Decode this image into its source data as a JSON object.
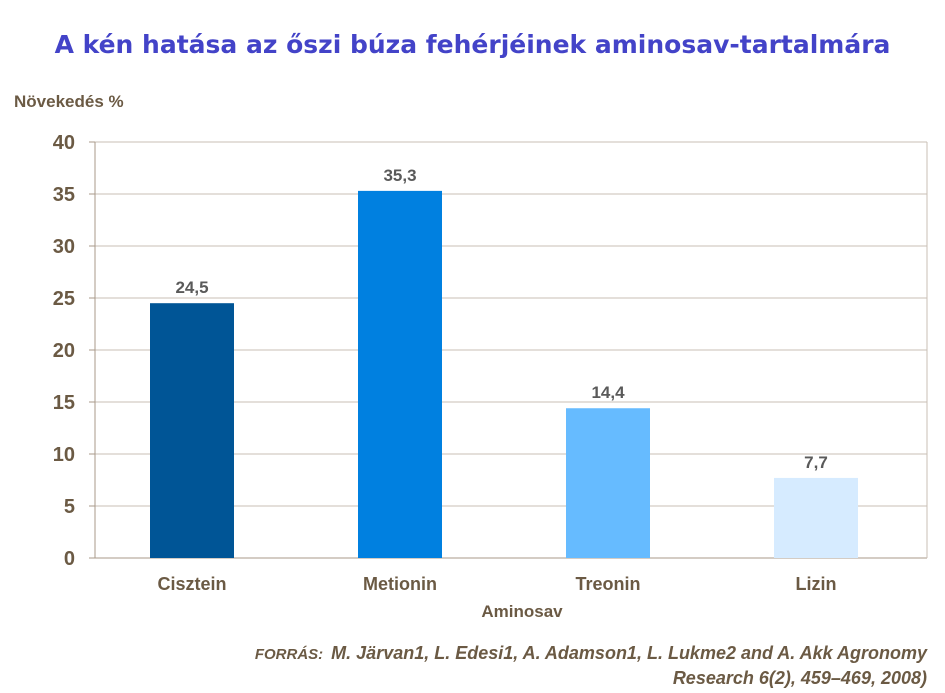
{
  "chart_data": {
    "type": "bar",
    "title": "A kén hatása az őszi búza fehérjéinek aminosav-tartalmára",
    "ylabel": "Növekedés %",
    "xlabel": "Aminosav",
    "categories": [
      "Cisztein",
      "Metionin",
      "Treonin",
      "Lizin"
    ],
    "values": [
      24.5,
      35.3,
      14.4,
      7.7
    ],
    "data_labels": [
      "24,5",
      "35,3",
      "14,4",
      "7,7"
    ],
    "colors": [
      "#005596",
      "#0080e0",
      "#66bbff",
      "#d6ebff"
    ],
    "ylim": [
      0,
      40
    ],
    "yticks": [
      0,
      5,
      10,
      15,
      20,
      25,
      30,
      35,
      40
    ],
    "grid": true,
    "legend": "none"
  },
  "source": {
    "label": "FORRÁS:",
    "line1": "M. Järvan1, L. Edesi1, A. Adamson1, L. Lukme2 and A. Akk Agronomy",
    "line2": "Research 6(2), 459–469, 2008)"
  }
}
